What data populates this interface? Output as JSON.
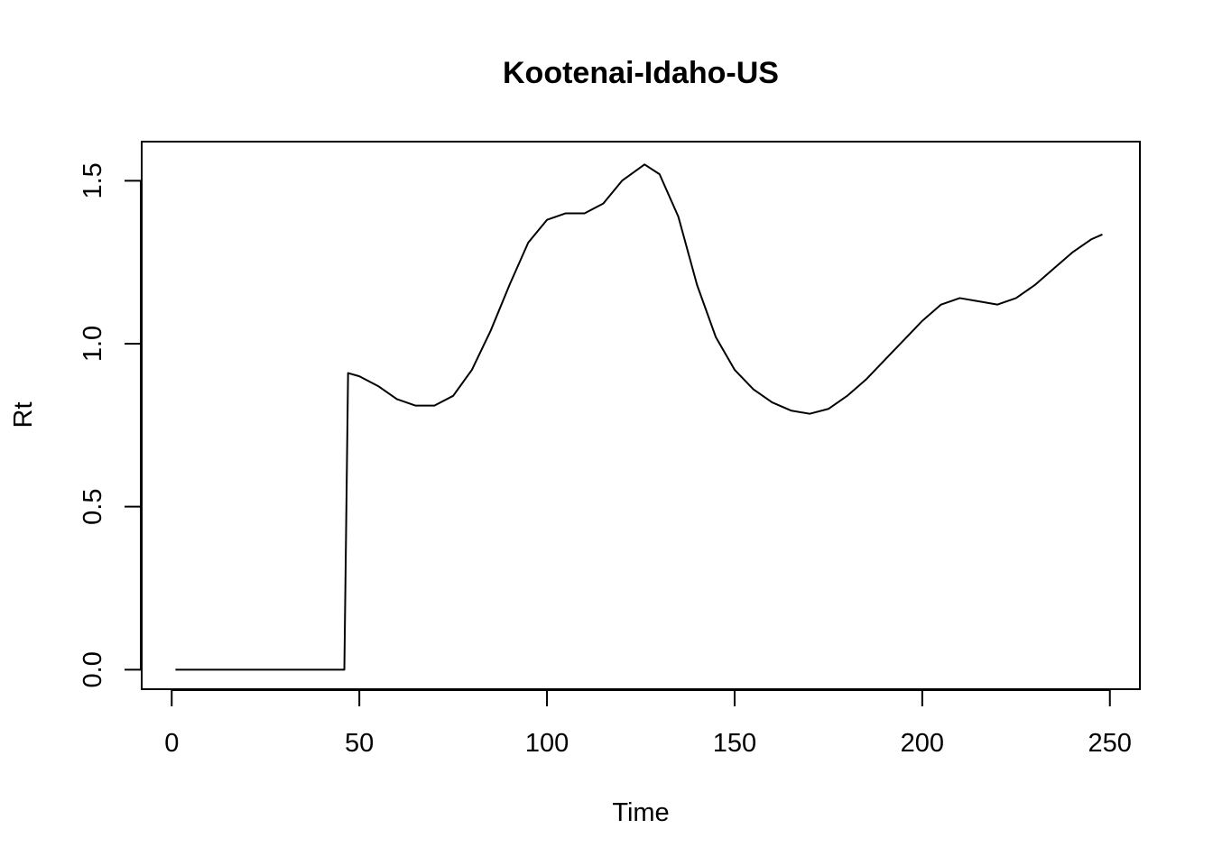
{
  "chart_data": {
    "type": "line",
    "title": "Kootenai-Idaho-US",
    "xlabel": "Time",
    "ylabel": "Rt",
    "xlim": [
      -8,
      258
    ],
    "ylim": [
      -0.06,
      1.62
    ],
    "xticks": [
      0,
      50,
      100,
      150,
      200,
      250
    ],
    "xtick_labels": [
      "0",
      "50",
      "100",
      "150",
      "200",
      "250"
    ],
    "yticks": [
      0.0,
      0.5,
      1.0,
      1.5
    ],
    "ytick_labels": [
      "0.0",
      "0.5",
      "1.0",
      "1.5"
    ],
    "grid": false,
    "legend": "none",
    "series": [
      {
        "color": "#000000",
        "x": [
          1,
          10,
          20,
          30,
          40,
          46,
          47,
          50,
          55,
          60,
          65,
          70,
          75,
          80,
          85,
          90,
          95,
          100,
          105,
          110,
          115,
          120,
          126,
          130,
          135,
          140,
          145,
          150,
          155,
          160,
          165,
          170,
          175,
          180,
          185,
          190,
          195,
          200,
          205,
          210,
          215,
          220,
          225,
          230,
          235,
          240,
          245,
          248
        ],
        "y": [
          0,
          0,
          0,
          0,
          0,
          0,
          0.91,
          0.9,
          0.87,
          0.83,
          0.81,
          0.81,
          0.84,
          0.92,
          1.04,
          1.18,
          1.31,
          1.38,
          1.4,
          1.4,
          1.43,
          1.5,
          1.55,
          1.52,
          1.39,
          1.18,
          1.02,
          0.92,
          0.86,
          0.82,
          0.795,
          0.785,
          0.8,
          0.84,
          0.89,
          0.95,
          1.01,
          1.07,
          1.12,
          1.14,
          1.13,
          1.12,
          1.14,
          1.18,
          1.23,
          1.28,
          1.32,
          1.335
        ]
      }
    ]
  }
}
